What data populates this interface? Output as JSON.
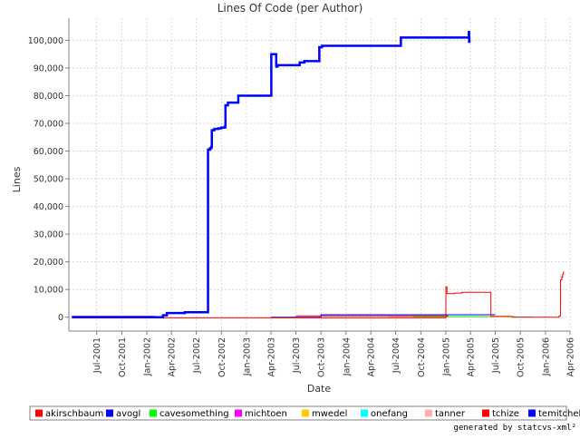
{
  "chart_data": {
    "type": "line",
    "title": "Lines Of Code (per Author)",
    "xlabel": "Date",
    "ylabel": "Lines",
    "xlim": [
      "2001-03-21",
      "2006-04-01"
    ],
    "ylim": [
      -5000,
      108000
    ],
    "grid": true,
    "legend_position": "bottom",
    "x_ticks": [
      "Jul-2001",
      "Oct-2001",
      "Jan-2002",
      "Apr-2002",
      "Jul-2002",
      "Oct-2002",
      "Jan-2003",
      "Apr-2003",
      "Jul-2003",
      "Oct-2003",
      "Jan-2004",
      "Apr-2004",
      "Jul-2004",
      "Oct-2004",
      "Jan-2005",
      "Apr-2005",
      "Jul-2005",
      "Oct-2005",
      "Jan-2006",
      "Apr-2006"
    ],
    "y_ticks": [
      0,
      10000,
      20000,
      30000,
      40000,
      50000,
      60000,
      70000,
      80000,
      90000,
      100000
    ],
    "y_tick_labels": [
      "0",
      "10,000",
      "20,000",
      "30,000",
      "40,000",
      "50,000",
      "60,000",
      "70,000",
      "80,000",
      "90,000",
      "100,000"
    ],
    "series": [
      {
        "name": "akirschbaum",
        "color": "#ff0000",
        "width": 1,
        "points": [
          [
            "2003-07-01",
            500
          ],
          [
            "2005-01-10",
            500
          ]
        ]
      },
      {
        "name": "avogl",
        "color": "#0000ff",
        "width": 2.5,
        "points": [
          [
            "2001-04-01",
            0
          ],
          [
            "2002-02-15",
            0
          ],
          [
            "2002-03-01",
            700
          ],
          [
            "2002-03-15",
            1500
          ],
          [
            "2002-05-15",
            1500
          ],
          [
            "2002-05-20",
            1800
          ],
          [
            "2002-08-12",
            1800
          ],
          [
            "2002-08-13",
            60500
          ],
          [
            "2002-08-20",
            61000
          ],
          [
            "2002-08-25",
            61500
          ],
          [
            "2002-08-27",
            67500
          ],
          [
            "2002-09-05",
            68000
          ],
          [
            "2002-09-20",
            68200
          ],
          [
            "2002-10-01",
            68500
          ],
          [
            "2002-10-15",
            69000
          ],
          [
            "2002-10-16",
            76500
          ],
          [
            "2002-10-25",
            77500
          ],
          [
            "2002-12-01",
            77500
          ],
          [
            "2002-12-02",
            80000
          ],
          [
            "2003-04-01",
            80000
          ],
          [
            "2003-04-02",
            95000
          ],
          [
            "2003-04-15",
            95000
          ],
          [
            "2003-04-20",
            90500
          ],
          [
            "2003-04-25",
            91000
          ],
          [
            "2003-07-01",
            91000
          ],
          [
            "2003-07-15",
            92000
          ],
          [
            "2003-08-01",
            92500
          ],
          [
            "2003-09-20",
            92500
          ],
          [
            "2003-09-25",
            97500
          ],
          [
            "2003-10-05",
            98000
          ],
          [
            "2004-07-15",
            98000
          ],
          [
            "2004-07-20",
            101000
          ],
          [
            "2005-03-25",
            101000
          ],
          [
            "2005-03-26",
            103000
          ],
          [
            "2005-03-27",
            99500
          ],
          [
            "2005-03-28",
            101000
          ]
        ]
      },
      {
        "name": "cavesomething",
        "color": "#00ff00",
        "width": 1,
        "points": [
          [
            "2004-09-01",
            200
          ],
          [
            "2005-09-15",
            200
          ]
        ]
      },
      {
        "name": "michtoen",
        "color": "#ff00ff",
        "width": 2,
        "points": [
          [
            "2001-04-01",
            200
          ],
          [
            "2002-02-01",
            200
          ]
        ]
      },
      {
        "name": "mwedel",
        "color": "#ffc800",
        "width": 1,
        "points": [
          [
            "2005-06-15",
            300
          ],
          [
            "2005-09-01",
            300
          ]
        ]
      },
      {
        "name": "onefang",
        "color": "#00ffff",
        "width": 1,
        "points": [
          [
            "2005-09-01",
            100
          ],
          [
            "2005-11-15",
            100
          ]
        ]
      },
      {
        "name": "tanner",
        "color": "#ffafaf",
        "width": 1,
        "points": [
          [
            "2004-06-01",
            150
          ],
          [
            "2005-06-01",
            150
          ]
        ]
      },
      {
        "name": "tchize",
        "color": "#ff0000",
        "width": 1,
        "points": [
          [
            "2002-02-01",
            -200
          ],
          [
            "2005-01-01",
            -200
          ],
          [
            "2005-01-01",
            11000
          ],
          [
            "2005-01-05",
            8500
          ],
          [
            "2005-02-01",
            8700
          ],
          [
            "2005-03-01",
            9000
          ],
          [
            "2005-06-15",
            9000
          ],
          [
            "2005-06-15",
            300
          ],
          [
            "2005-09-01",
            0
          ],
          [
            "2006-02-15",
            0
          ],
          [
            "2006-02-20",
            500
          ],
          [
            "2006-02-25",
            13500
          ],
          [
            "2006-03-02",
            14500
          ],
          [
            "2006-03-05",
            15500
          ],
          [
            "2006-03-08",
            16500
          ]
        ]
      },
      {
        "name": "temitchell",
        "color": "#0000ff",
        "width": 1,
        "points": [
          [
            "2003-04-01",
            0
          ],
          [
            "2003-10-01",
            0
          ],
          [
            "2003-10-01",
            900
          ],
          [
            "2005-07-01",
            900
          ]
        ]
      }
    ],
    "generated_by": "generated by statcvs-xml²"
  }
}
